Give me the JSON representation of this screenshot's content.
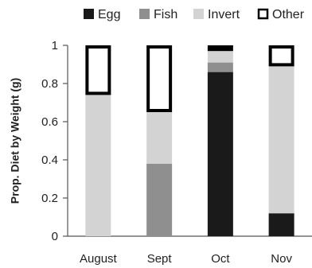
{
  "chart_data": {
    "type": "bar",
    "stacked": true,
    "categories": [
      "August",
      "Sept",
      "Oct",
      "Nov"
    ],
    "ylabel": "Prop. Diet by Weight (g)",
    "xlabel": "",
    "ylim": [
      0,
      1
    ],
    "yticks": [
      "0",
      "0.2",
      "0.4",
      "0.6",
      "0.8",
      "1"
    ],
    "legend_position": "top",
    "series": [
      {
        "name": "Egg",
        "values": [
          0,
          0,
          0.86,
          0.12
        ],
        "color": "#1a1a1a",
        "outline": false
      },
      {
        "name": "Fish",
        "values": [
          0,
          0.38,
          0.05,
          0
        ],
        "color": "#8f8f8f",
        "outline": false
      },
      {
        "name": "Invert",
        "values": [
          0.74,
          0.27,
          0.06,
          0.77
        ],
        "color": "#d3d3d3",
        "outline": false
      },
      {
        "name": "Other",
        "values": [
          0.26,
          0.35,
          0.03,
          0.11
        ],
        "color": "#ffffff",
        "outline": true
      }
    ]
  }
}
